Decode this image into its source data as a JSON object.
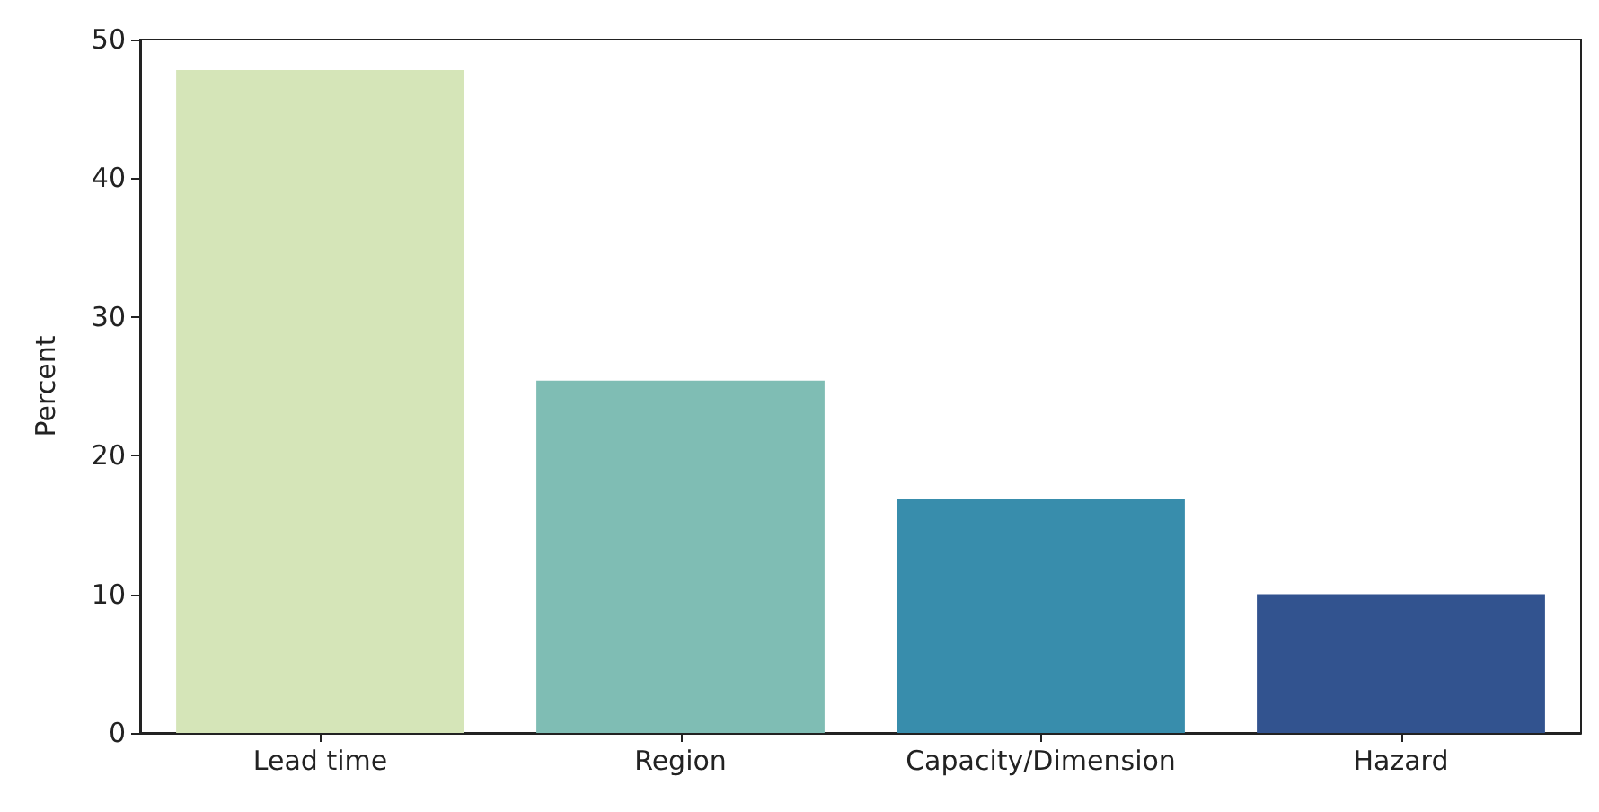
{
  "chart_data": {
    "type": "bar",
    "ylabel": "Percent",
    "categories": [
      "Lead time",
      "Region",
      "Capacity/Dimension",
      "Hazard"
    ],
    "values": [
      47.8,
      25.4,
      16.9,
      10.0
    ],
    "colors": [
      "#d5e5b8",
      "#7fbdb4",
      "#388dac",
      "#32538f"
    ],
    "ylim": [
      0,
      50
    ],
    "yticks": [
      0,
      10,
      20,
      30,
      40,
      50
    ],
    "grid": false
  }
}
